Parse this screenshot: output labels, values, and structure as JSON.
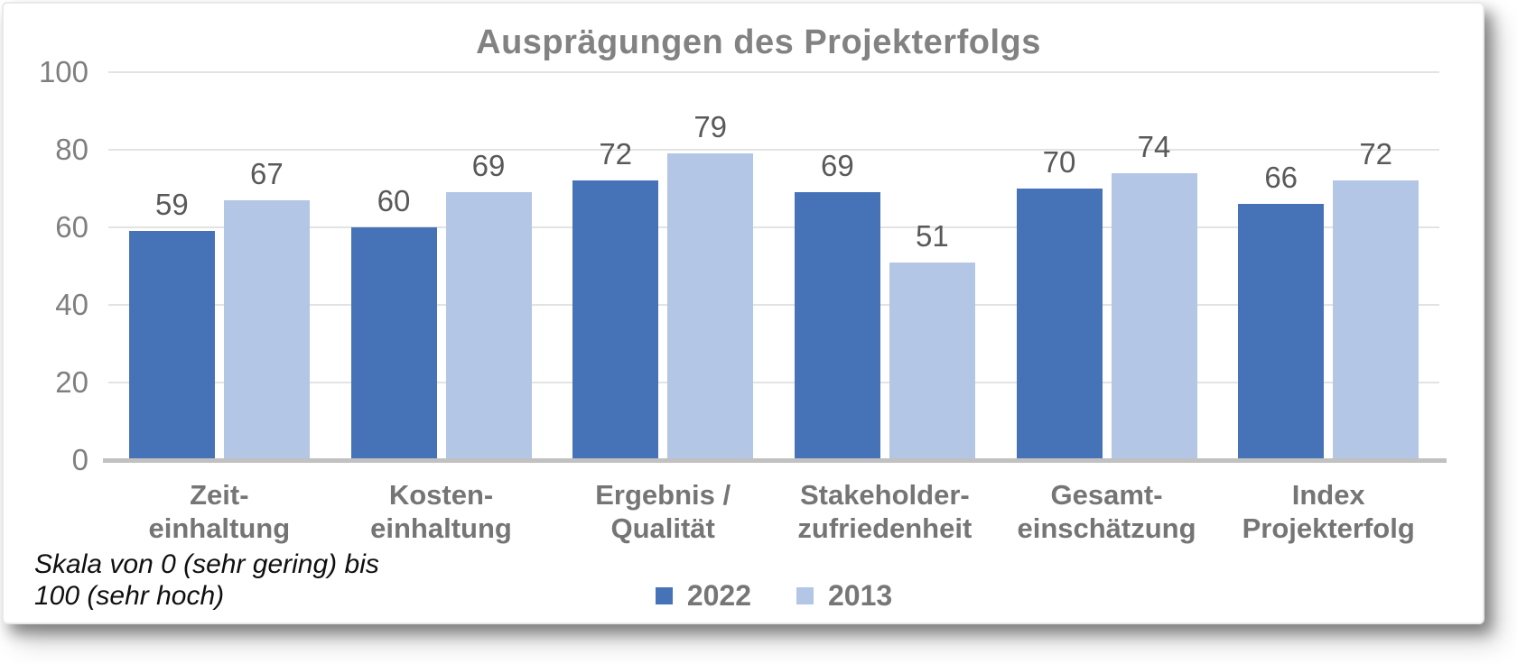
{
  "chart_data": {
    "type": "bar",
    "title": "Ausprägungen des Projekterfolgs",
    "categories": [
      "Zeit-\neinhaltung",
      "Kosten-\neinhaltung",
      "Ergebnis /\nQualität",
      "Stakeholder-\nzufriedenheit",
      "Gesamt-\neinschätzung",
      "Index\nProjekterfolg"
    ],
    "series": [
      {
        "name": "2022",
        "color": "#4673B8",
        "values": [
          59,
          60,
          72,
          69,
          70,
          66
        ]
      },
      {
        "name": "2013",
        "color": "#B3C6E6",
        "values": [
          67,
          69,
          79,
          51,
          74,
          72
        ]
      }
    ],
    "ylim": [
      0,
      100
    ],
    "yticks": [
      0,
      20,
      40,
      60,
      80,
      100
    ],
    "grid": true,
    "legend_position": "bottom-center",
    "value_labels": true
  },
  "footnote": {
    "text": "Skala von 0 (sehr gering) bis\n100 (sehr hoch)"
  },
  "colors": {
    "series_2022": "#4673B8",
    "series_2013": "#B3C6E6",
    "title_text": "#828282",
    "axis_text": "#7f7f7f",
    "value_text": "#595959",
    "category_text": "#757575",
    "gridline": "#e3e3e3",
    "baseline": "#c1c1c1",
    "card_background": "#ffffff"
  }
}
